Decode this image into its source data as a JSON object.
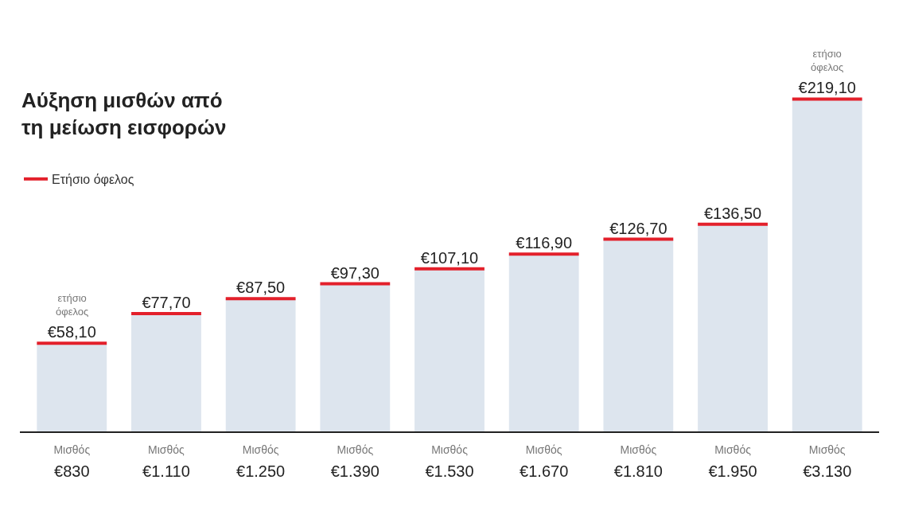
{
  "chart_data": {
    "type": "bar",
    "title": "Αύξηση μισθών από\nτη μείωση εισφορών",
    "legend": "top left",
    "categories": [
      "Μισθός\n€830",
      "Μισθός\n€1.110",
      "Μισθός\n€1.250",
      "Μισθός\n€1.390",
      "Μισθός\n€1.530",
      "Μισθός\n€1.670",
      "Μισθός\n€1.810",
      "Μισθός\n€1.950",
      "Μισθός\n€3.130"
    ],
    "series": [
      {
        "name": "Ετήσιο όφελος",
        "color": "#dde5ee",
        "values": [
          58.1,
          77.7,
          87.5,
          97.3,
          107.1,
          116.9,
          126.7,
          136.5,
          219.1
        ],
        "value_labels": [
          "€58,10",
          "€77,70",
          "€87,50",
          "€97,30",
          "€107,10",
          "€116,90",
          "€126,70",
          "€136,50",
          "€219,10"
        ]
      }
    ],
    "annotations": [
      {
        "text": "ετήσιο\nόφελος",
        "x": "Μισθός\n€830",
        "y": 58.1
      },
      {
        "text": "ετήσιο\nόφελος",
        "x": "Μισθός\n€3.130",
        "y": 219.1
      }
    ]
  }
}
